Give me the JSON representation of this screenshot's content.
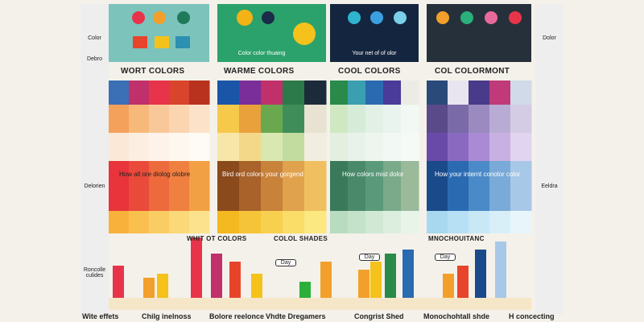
{
  "sidebar_left": {
    "labels": [
      "Color",
      "Debro",
      "Delorien",
      "Roncolle culides"
    ]
  },
  "sidebar_right": {
    "labels": [
      "Dolor",
      "Eeldra"
    ]
  },
  "top_panels": {
    "captions": [
      "Color color thuaing",
      "Your net of of olor"
    ]
  },
  "sections": {
    "headings": [
      "WORT COLORS",
      "WARME COLORS",
      "COOL COLORS",
      "COL COLORMONT"
    ]
  },
  "notes": [
    "How all ore diolog olobre",
    "Bird ord colors your gorgend",
    "How colors mist dolor",
    "How your internt conolor color"
  ],
  "charts": {
    "titles": [
      "WHIT OT COLORS",
      "COLOL SHADES",
      "MNOCHOUITANC"
    ],
    "badges": [
      "Day",
      "Day",
      "Day"
    ]
  },
  "footer": {
    "labels": [
      "Wite effets",
      "Chilg inelnoss",
      "Bolore reelonce",
      "Vhdte Dregamers",
      "Congrist Shed",
      "Monochohtall shde",
      "H concecting"
    ]
  }
}
